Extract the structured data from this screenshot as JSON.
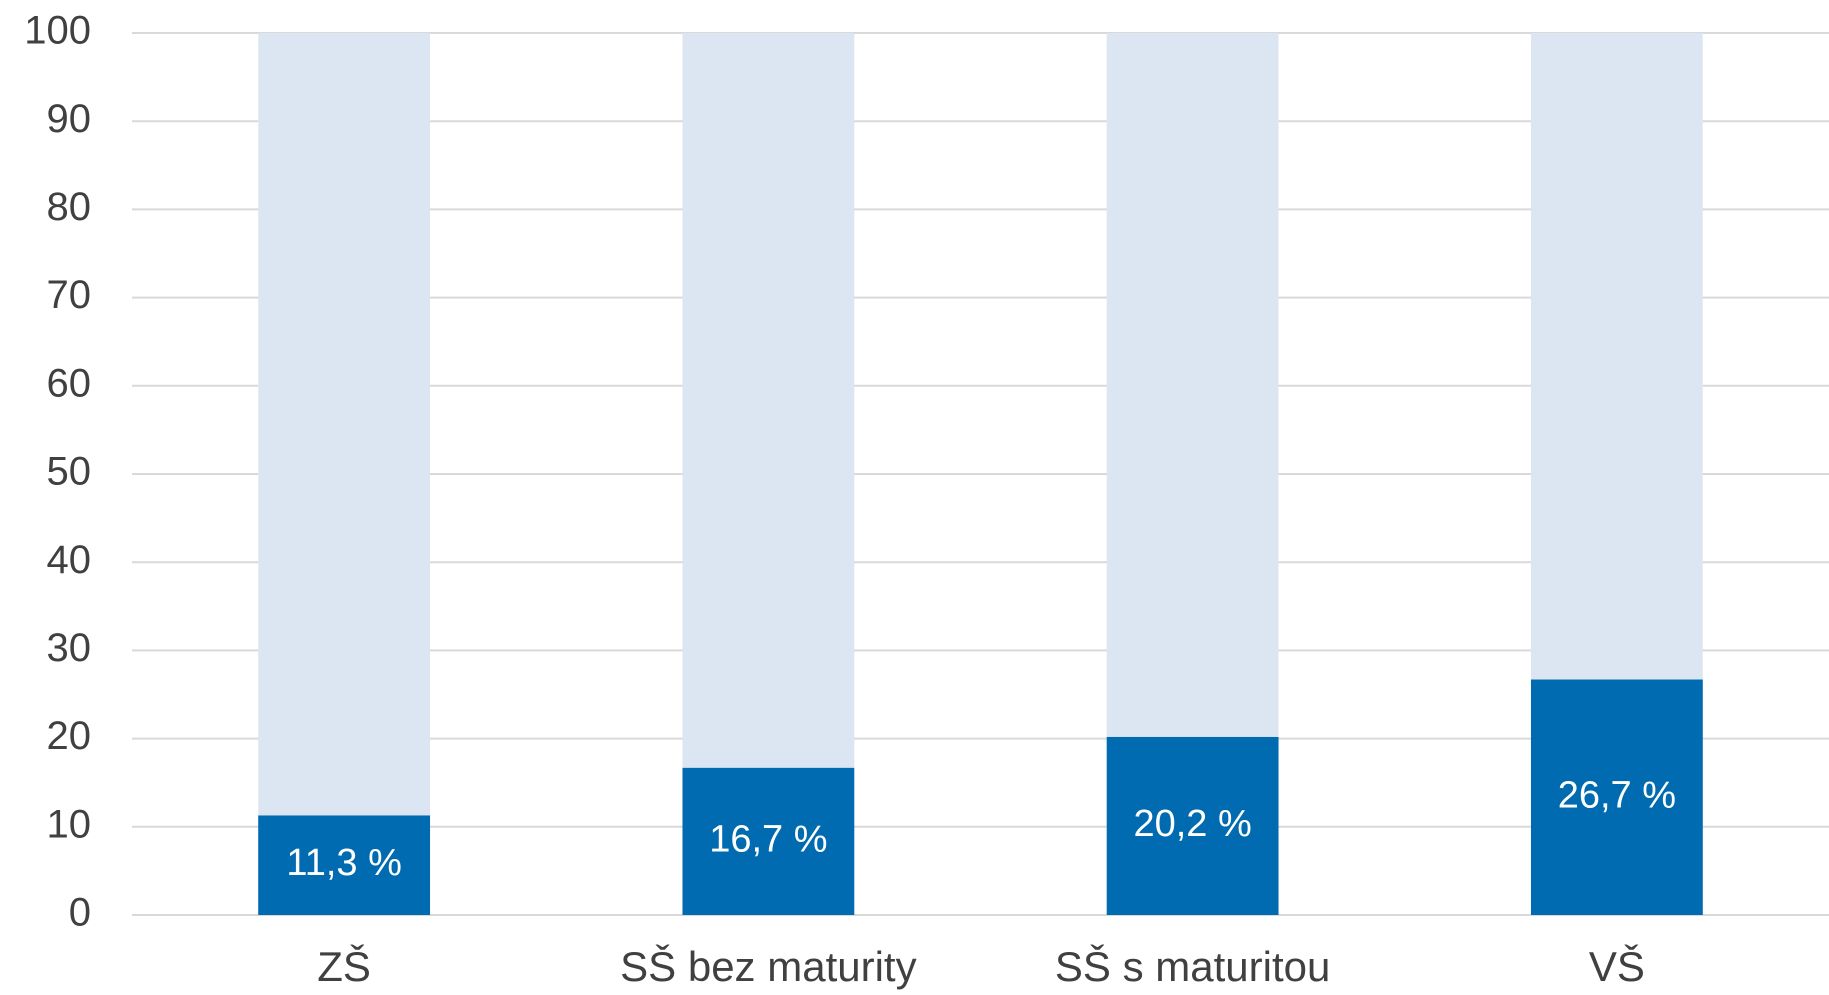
{
  "chart_data": {
    "type": "stacked_bar",
    "categories": [
      "ZŠ",
      "SŠ bez maturity",
      "SŠ s maturitou",
      "VŠ"
    ],
    "series": [
      {
        "color": "#006bb0",
        "values": [
          11.3,
          16.7,
          20.2,
          26.7
        ],
        "value_labels": [
          "11,3 %",
          "16,7 %",
          "20,2 %",
          "26,7 %"
        ]
      },
      {
        "color": "#dce6f2",
        "values": [
          88.7,
          83.3,
          79.8,
          73.3
        ]
      }
    ],
    "ylim": [
      0,
      100
    ],
    "yticks": [
      0,
      10,
      20,
      30,
      40,
      50,
      60,
      70,
      80,
      90,
      100
    ],
    "grid": true
  }
}
